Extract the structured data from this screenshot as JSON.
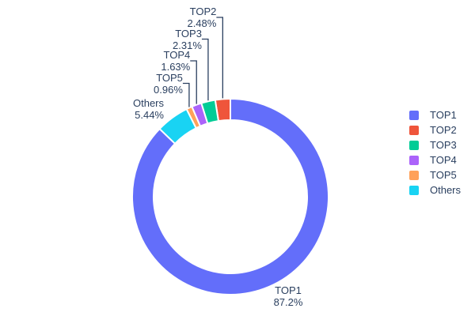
{
  "figure": {
    "background_color": "#FFFFFF",
    "text_color": "#2A3F5F"
  },
  "chart_data": {
    "type": "pie",
    "subtype": "donut",
    "title": "",
    "hole_ratio": 0.78,
    "labels": [
      "TOP1",
      "TOP2",
      "TOP3",
      "TOP4",
      "TOP5",
      "Others"
    ],
    "values": [
      87.2,
      2.48,
      2.31,
      1.63,
      0.96,
      5.44
    ],
    "percent_labels": [
      "87.2%",
      "2.48%",
      "2.31%",
      "1.63%",
      "0.96%",
      "5.44%"
    ],
    "colors": [
      "#636EFA",
      "#EF553B",
      "#00CC96",
      "#AB63FA",
      "#FFA15A",
      "#19D3F3"
    ],
    "slice_border_color": "#FFFFFF",
    "leader_line_color": "#2A3F5F",
    "label_position": "outside",
    "legend_position": "right",
    "legend_entries": [
      "TOP1",
      "TOP2",
      "TOP3",
      "TOP4",
      "TOP5",
      "Others"
    ]
  }
}
